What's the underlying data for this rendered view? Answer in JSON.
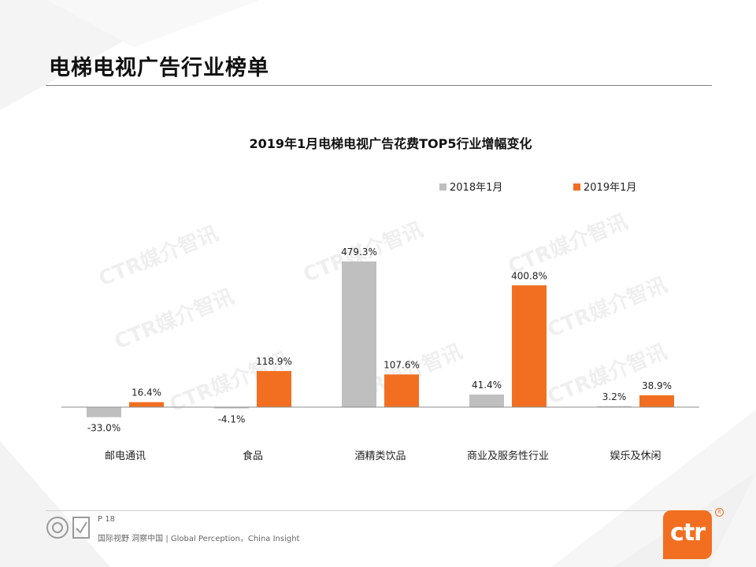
{
  "page": {
    "title": "电梯电视广告行业榜单"
  },
  "footer": {
    "page_number": "P 18",
    "tagline": "国际视野 洞察中国 | Global Perception，China Insight",
    "brand": "ctr",
    "watermark": "CTR媒介智讯"
  },
  "colors": {
    "series_2018": "#bfbfbf",
    "series_2019": "#f26f21",
    "accent": "#f26f21"
  },
  "icons": [
    "sgs-certification-icon",
    "ctr-logo-icon"
  ],
  "chart_data": {
    "type": "bar",
    "title": "2019年1月电梯电视广告花费TOP5行业增幅变化",
    "categories": [
      "邮电通讯",
      "食品",
      "酒精类饮品",
      "商业及服务性行业",
      "娱乐及休闲"
    ],
    "series": [
      {
        "name": "2018年1月",
        "values": [
          -33.0,
          -4.1,
          479.3,
          41.4,
          3.2
        ],
        "labels": [
          "-33.0%",
          "-4.1%",
          "479.3%",
          "41.4%",
          "3.2%"
        ]
      },
      {
        "name": "2019年1月",
        "values": [
          16.4,
          118.9,
          107.6,
          400.8,
          38.9
        ],
        "labels": [
          "16.4%",
          "118.9%",
          "107.6%",
          "400.8%",
          "38.9%"
        ]
      }
    ],
    "unit": "%",
    "legend_position": "top-right",
    "grid": false,
    "ylim": [
      -50,
      500
    ]
  }
}
